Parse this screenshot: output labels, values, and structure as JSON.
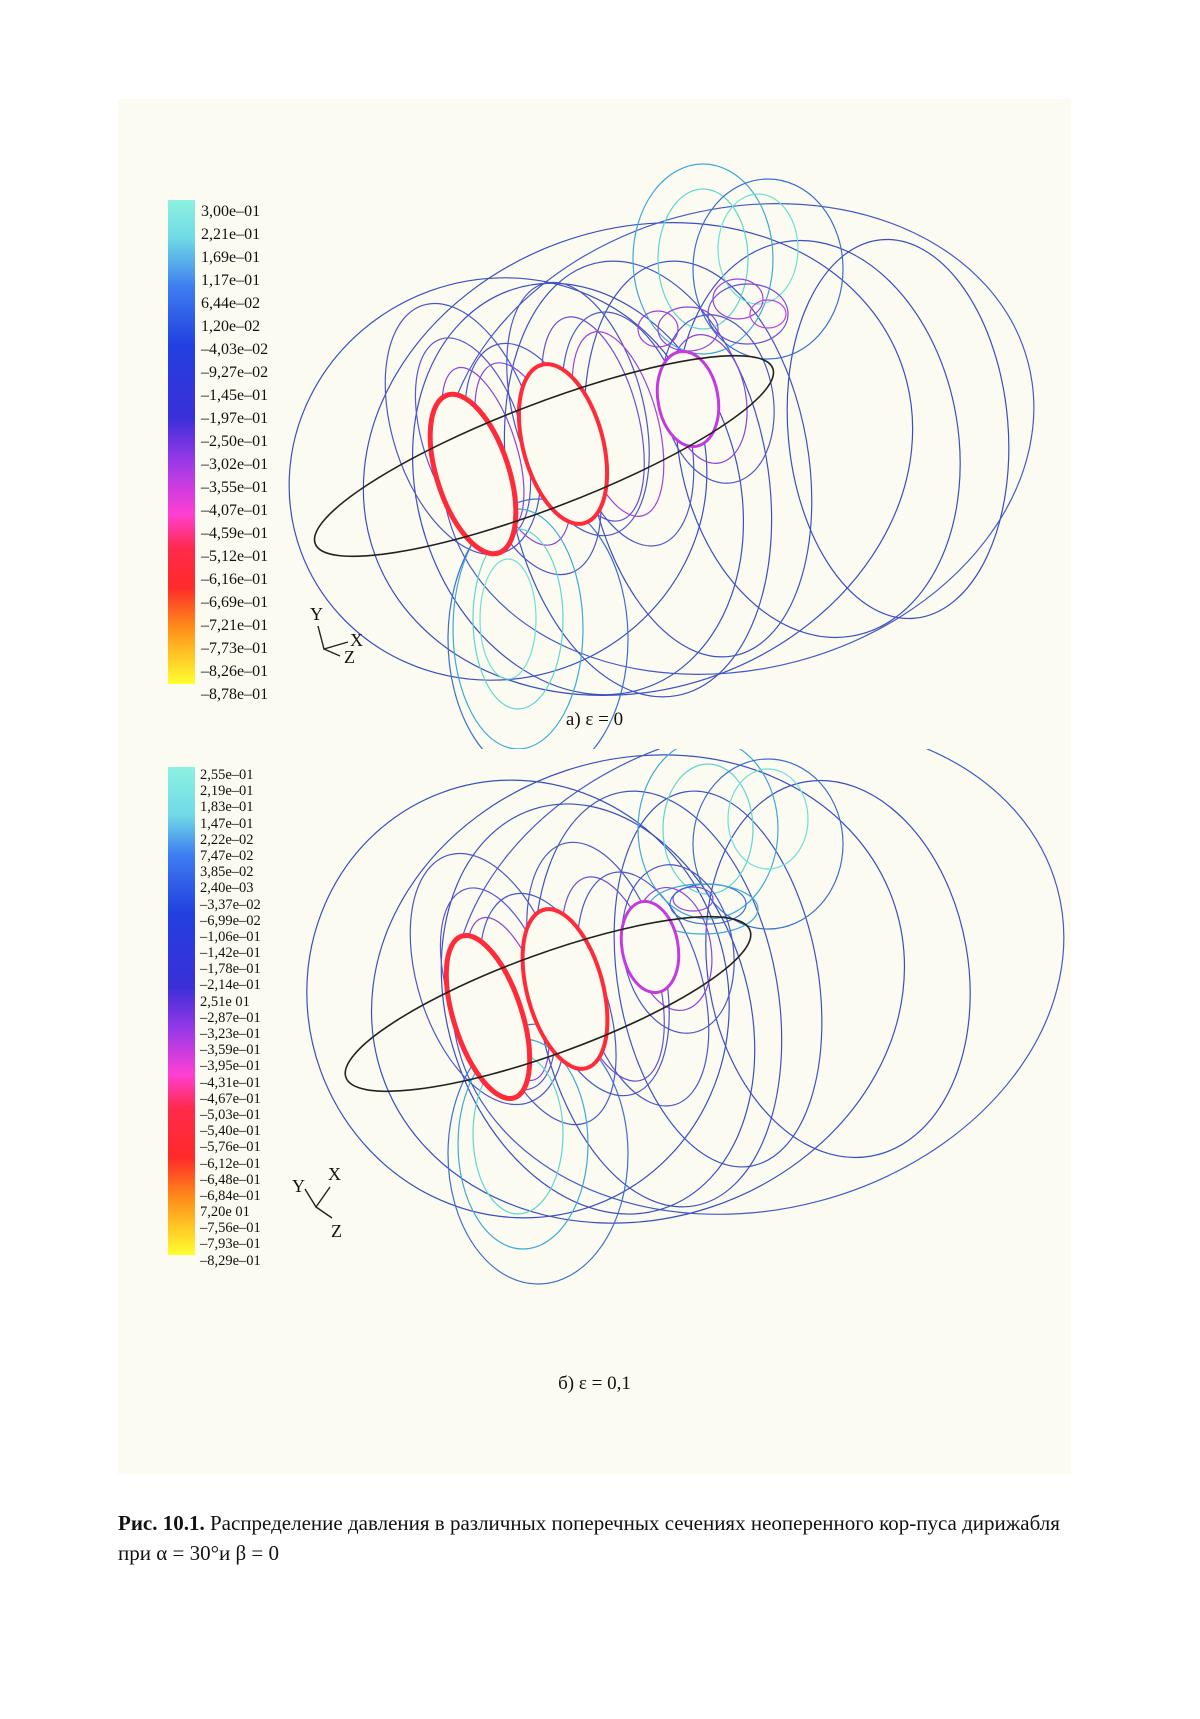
{
  "figure_a": {
    "legend_values": [
      "3,00e–01",
      "2,21e–01",
      "1,69e–01",
      "1,17e–01",
      "6,44e–02",
      "1,20e–02",
      "–4,03e–02",
      "–9,27e–02",
      "–1,45e–01",
      "–1,97e–01",
      "–2,50e–01",
      "–3,02e–01",
      "–3,55e–01",
      "–4,07e–01",
      "–4,59e–01",
      "–5,12e–01",
      "–6,16e–01",
      "–6,69e–01",
      "–7,21e–01",
      "–7,73e–01",
      "–8,26e–01",
      "–8,78e–01"
    ],
    "axis_labels": {
      "y": "Y",
      "x": "X",
      "z": "Z"
    },
    "caption": "а) ε = 0"
  },
  "figure_b": {
    "legend_values": [
      "2,55e–01",
      "2,19e–01",
      "1,83e–01",
      "1,47e–01",
      "2,22e–02",
      "7,47e–02",
      "3,85e–02",
      "2,40e–03",
      "–3,37e–02",
      "–6,99e–02",
      "–1,06e–01",
      "–1,42e–01",
      "–1,78e–01",
      "–2,14e–01",
      "2,51e 01",
      "–2,87e–01",
      "–3,23e–01",
      "–3,59e–01",
      "–3,95e–01",
      "–4,31e–01",
      "–4,67e–01",
      "–5,03e–01",
      "–5,40e–01",
      "–5,76e–01",
      "–6,12e–01",
      "–6,48e–01",
      "–6,84e–01",
      "7,20e 01",
      "–7,56e–01",
      "–7,93e–01",
      "–8,29e–01"
    ],
    "axis_labels": {
      "y": "Y",
      "x": "X",
      "z": "Z"
    },
    "caption": "б) ε = 0,1"
  },
  "caption": {
    "label": "Рис. 10.1.",
    "text": " Распределение давления в различных поперечных сечениях неоперенного кор-пуса дирижабля при α = 30°и β = 0"
  },
  "colors": {
    "panel_bg": "#fbfbf1",
    "contour_blue": "#3a4fc0",
    "contour_cyan": "#5fd6d0",
    "contour_magenta": "#e04ad8",
    "contour_red": "#ff2030"
  }
}
